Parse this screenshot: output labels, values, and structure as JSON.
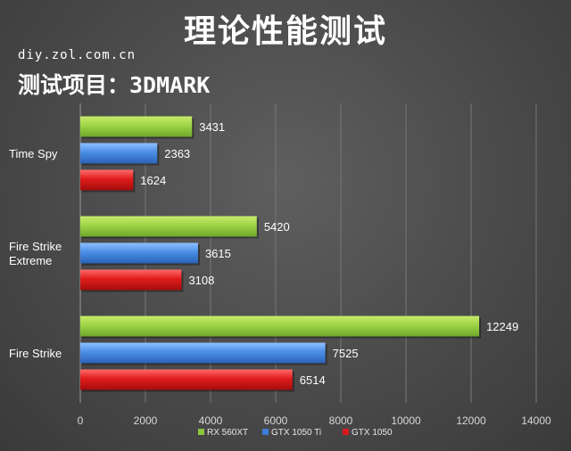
{
  "page": {
    "title": "理论性能测试",
    "watermark": "diy.zol.com.cn",
    "subtitle": "测试项目：3DMARK"
  },
  "chart_data": {
    "type": "bar",
    "orientation": "horizontal",
    "categories": [
      "Time Spy",
      "Fire Strike Extreme",
      "Fire Strike"
    ],
    "category_display": [
      [
        "Time Spy"
      ],
      [
        "Fire Strike",
        "Extreme"
      ],
      [
        "Fire Strike"
      ]
    ],
    "series": [
      {
        "name": "RX 560XT",
        "values": [
          3431,
          5420,
          12249
        ],
        "color": "#8cc63f"
      },
      {
        "name": "GTX 1050 Ti",
        "values": [
          2363,
          3615,
          7525
        ],
        "color": "#3b7dd8"
      },
      {
        "name": "GTX 1050",
        "values": [
          1624,
          3108,
          6514
        ],
        "color": "#d9191c"
      }
    ],
    "xlim": [
      0,
      14000
    ],
    "xticks": [
      0,
      2000,
      4000,
      6000,
      8000,
      10000,
      12000,
      14000
    ],
    "grid": true,
    "legend_position": "bottom",
    "data_labels": true
  }
}
